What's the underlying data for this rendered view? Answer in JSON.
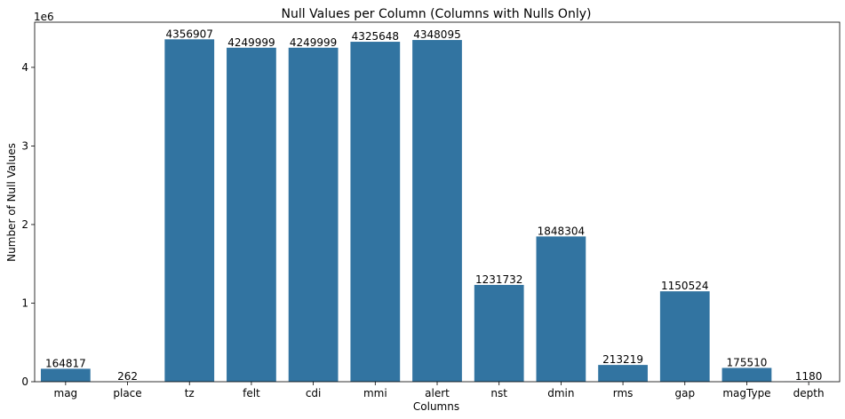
{
  "chart_data": {
    "type": "bar",
    "title": "Null Values per Column (Columns with Nulls Only)",
    "xlabel": "Columns",
    "ylabel": "Number of Null Values",
    "y_offset_label": "1e6",
    "categories": [
      "mag",
      "place",
      "tz",
      "felt",
      "cdi",
      "mmi",
      "alert",
      "nst",
      "dmin",
      "rms",
      "gap",
      "magType",
      "depth"
    ],
    "values": [
      164817,
      262,
      4356907,
      4249999,
      4249999,
      4325648,
      4348095,
      1231732,
      1848304,
      213219,
      1150524,
      175510,
      1180
    ],
    "value_labels": [
      "164817",
      "262",
      "4356907",
      "4249999",
      "4249999",
      "4325648",
      "4348095",
      "1231732",
      "1848304",
      "213219",
      "1150524",
      "175510",
      "1180"
    ],
    "yticks": [
      0,
      1000000,
      2000000,
      3000000,
      4000000
    ],
    "ytick_labels": [
      "0",
      "1",
      "2",
      "3",
      "4"
    ],
    "ylim": [
      0,
      4574752
    ],
    "bar_color": "#3274a1",
    "grid": false
  }
}
